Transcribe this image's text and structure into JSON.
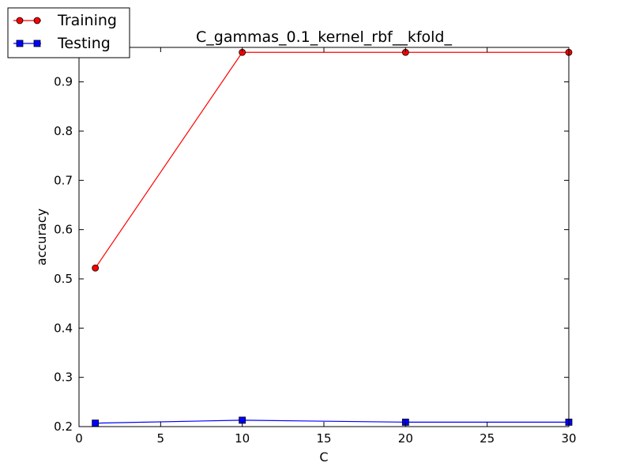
{
  "chart_data": {
    "type": "line",
    "title": "C_gammas_0.1_kernel_rbf__kfold_",
    "xlabel": "C",
    "ylabel": "accuracy",
    "xlim": [
      0,
      30
    ],
    "ylim": [
      0.2,
      0.97
    ],
    "xticks": [
      0,
      5,
      10,
      15,
      20,
      25,
      30
    ],
    "yticks": [
      0.2,
      0.3,
      0.4,
      0.5,
      0.6,
      0.7,
      0.8,
      0.9
    ],
    "xtick_labels": [
      "0",
      "5",
      "10",
      "15",
      "20",
      "25",
      "30"
    ],
    "ytick_labels": [
      "0.2",
      "0.3",
      "0.4",
      "0.5",
      "0.6",
      "0.7",
      "0.8",
      "0.9"
    ],
    "x": [
      1,
      10,
      20,
      30
    ],
    "series": [
      {
        "name": "Training",
        "values": [
          0.522,
          0.96,
          0.96,
          0.96
        ],
        "color": "#ff0000",
        "marker": "circle"
      },
      {
        "name": "Testing",
        "values": [
          0.207,
          0.213,
          0.209,
          0.209
        ],
        "color": "#0000ff",
        "marker": "square"
      }
    ],
    "legend_position": "top-left"
  }
}
